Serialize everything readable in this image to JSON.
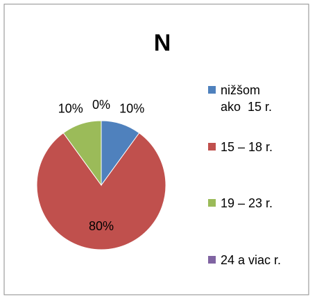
{
  "chart_data": {
    "type": "pie",
    "title": "N",
    "categories": [
      "nižšom\nako  15 r.",
      "15 – 18 r.",
      "19 – 23 r.",
      "24 a viac r."
    ],
    "values": [
      10,
      80,
      10,
      0
    ],
    "value_labels": [
      "10%",
      "80%",
      "10%",
      "0%"
    ],
    "colors": [
      "#4f81bd",
      "#c0504d",
      "#9bbb59",
      "#8064a2"
    ],
    "legend": "right"
  }
}
